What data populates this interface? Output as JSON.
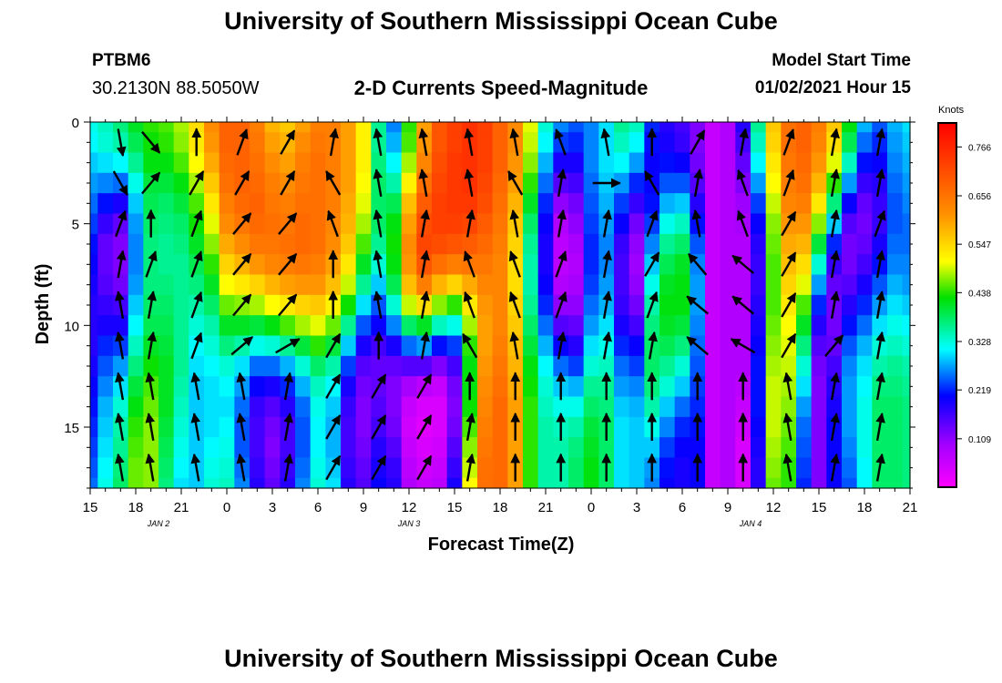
{
  "header": {
    "title": "University of Southern Mississippi Ocean Cube",
    "footer_title": "University of Southern Mississippi Ocean Cube",
    "station_id": "PTBM6",
    "station_coords": "30.2130N 88.5050W",
    "model_start_label": "Model Start Time",
    "model_start_value": "01/02/2021 Hour 15"
  },
  "chart_data": {
    "type": "heatmap",
    "title": "2-D Currents Speed-Magnitude",
    "xlabel": "Forecast Time(Z)",
    "ylabel": "Depth (ft)",
    "colorbar_label": "Knots",
    "xlim": [
      0,
      54
    ],
    "ylim": [
      0,
      18
    ],
    "y_inverted": true,
    "x_tick_labels": [
      "15",
      "18",
      "21",
      "0",
      "3",
      "6",
      "9",
      "12",
      "15",
      "18",
      "21",
      "0",
      "3",
      "6",
      "9",
      "12",
      "15",
      "18",
      "21"
    ],
    "y_ticks": [
      0,
      5,
      10,
      15
    ],
    "date_labels": [
      {
        "text": "JAN 2",
        "hours_since_start": 4.5
      },
      {
        "text": "JAN 3",
        "hours_since_start": 21
      },
      {
        "text": "JAN 4",
        "hours_since_start": 43.5
      }
    ],
    "colorbar_ticks": [
      "0.766",
      "0.656",
      "0.547",
      "0.438",
      "0.328",
      "0.219",
      "0.109"
    ],
    "colorbar_range": [
      0,
      0.82
    ],
    "depth_levels_ft": [
      0,
      1,
      2,
      3,
      4,
      5,
      6,
      7,
      8,
      9,
      10,
      11,
      12,
      13,
      14,
      15,
      16,
      17,
      18
    ],
    "speed_knots_by_hour": [
      [
        0.32,
        0.31,
        0.29,
        0.27,
        0.25,
        0.23,
        0.21,
        0.2,
        0.19,
        0.18,
        0.18,
        0.18,
        0.19,
        0.2,
        0.21,
        0.22,
        0.23,
        0.24,
        0.25
      ],
      [
        0.34,
        0.33,
        0.3,
        0.26,
        0.21,
        0.17,
        0.14,
        0.14,
        0.15,
        0.17,
        0.19,
        0.22,
        0.24,
        0.26,
        0.28,
        0.29,
        0.3,
        0.31,
        0.32
      ],
      [
        0.37,
        0.35,
        0.31,
        0.25,
        0.19,
        0.14,
        0.12,
        0.12,
        0.13,
        0.16,
        0.19,
        0.23,
        0.27,
        0.3,
        0.33,
        0.35,
        0.36,
        0.37,
        0.38
      ],
      [
        0.41,
        0.39,
        0.36,
        0.32,
        0.29,
        0.27,
        0.26,
        0.26,
        0.27,
        0.29,
        0.31,
        0.34,
        0.37,
        0.4,
        0.42,
        0.44,
        0.45,
        0.46,
        0.46
      ],
      [
        0.44,
        0.43,
        0.42,
        0.4,
        0.39,
        0.38,
        0.37,
        0.37,
        0.37,
        0.38,
        0.39,
        0.41,
        0.43,
        0.45,
        0.46,
        0.47,
        0.47,
        0.47,
        0.47
      ],
      [
        0.45,
        0.44,
        0.42,
        0.4,
        0.38,
        0.37,
        0.36,
        0.36,
        0.37,
        0.38,
        0.39,
        0.4,
        0.41,
        0.41,
        0.41,
        0.4,
        0.39,
        0.38,
        0.37
      ],
      [
        0.48,
        0.47,
        0.45,
        0.42,
        0.4,
        0.38,
        0.37,
        0.36,
        0.36,
        0.36,
        0.36,
        0.36,
        0.36,
        0.35,
        0.34,
        0.33,
        0.32,
        0.31,
        0.3
      ],
      [
        0.54,
        0.53,
        0.51,
        0.48,
        0.45,
        0.43,
        0.41,
        0.39,
        0.37,
        0.35,
        0.33,
        0.31,
        0.3,
        0.29,
        0.29,
        0.29,
        0.29,
        0.29,
        0.29
      ],
      [
        0.62,
        0.61,
        0.59,
        0.56,
        0.53,
        0.5,
        0.47,
        0.44,
        0.41,
        0.38,
        0.35,
        0.33,
        0.31,
        0.3,
        0.3,
        0.3,
        0.31,
        0.32,
        0.33
      ],
      [
        0.68,
        0.68,
        0.67,
        0.66,
        0.64,
        0.62,
        0.59,
        0.55,
        0.51,
        0.46,
        0.41,
        0.37,
        0.33,
        0.31,
        0.3,
        0.31,
        0.32,
        0.33,
        0.34
      ],
      [
        0.68,
        0.68,
        0.68,
        0.68,
        0.67,
        0.65,
        0.62,
        0.58,
        0.53,
        0.47,
        0.41,
        0.35,
        0.3,
        0.27,
        0.25,
        0.24,
        0.24,
        0.25,
        0.26
      ],
      [
        0.64,
        0.65,
        0.66,
        0.67,
        0.68,
        0.67,
        0.65,
        0.61,
        0.55,
        0.48,
        0.4,
        0.32,
        0.25,
        0.2,
        0.17,
        0.16,
        0.16,
        0.17,
        0.18
      ],
      [
        0.58,
        0.6,
        0.62,
        0.64,
        0.65,
        0.66,
        0.65,
        0.63,
        0.58,
        0.51,
        0.42,
        0.33,
        0.25,
        0.19,
        0.15,
        0.13,
        0.12,
        0.13,
        0.14
      ],
      [
        0.56,
        0.58,
        0.6,
        0.62,
        0.64,
        0.65,
        0.66,
        0.64,
        0.6,
        0.53,
        0.45,
        0.36,
        0.28,
        0.22,
        0.18,
        0.16,
        0.16,
        0.17,
        0.18
      ],
      [
        0.6,
        0.62,
        0.64,
        0.65,
        0.66,
        0.67,
        0.67,
        0.65,
        0.61,
        0.55,
        0.48,
        0.4,
        0.33,
        0.28,
        0.25,
        0.24,
        0.24,
        0.25,
        0.26
      ],
      [
        0.64,
        0.65,
        0.66,
        0.66,
        0.66,
        0.66,
        0.66,
        0.64,
        0.61,
        0.56,
        0.5,
        0.44,
        0.38,
        0.34,
        0.32,
        0.31,
        0.31,
        0.32,
        0.33
      ],
      [
        0.64,
        0.64,
        0.64,
        0.64,
        0.64,
        0.63,
        0.62,
        0.6,
        0.57,
        0.52,
        0.46,
        0.4,
        0.35,
        0.31,
        0.29,
        0.28,
        0.28,
        0.29,
        0.3
      ],
      [
        0.6,
        0.6,
        0.6,
        0.6,
        0.59,
        0.58,
        0.56,
        0.53,
        0.49,
        0.43,
        0.36,
        0.29,
        0.23,
        0.19,
        0.17,
        0.16,
        0.16,
        0.17,
        0.18
      ],
      [
        0.52,
        0.52,
        0.52,
        0.51,
        0.5,
        0.48,
        0.45,
        0.41,
        0.36,
        0.3,
        0.24,
        0.19,
        0.15,
        0.13,
        0.12,
        0.12,
        0.13,
        0.14,
        0.15
      ],
      [
        0.36,
        0.36,
        0.37,
        0.38,
        0.38,
        0.38,
        0.36,
        0.33,
        0.29,
        0.24,
        0.2,
        0.16,
        0.14,
        0.14,
        0.15,
        0.16,
        0.18,
        0.19,
        0.2
      ],
      [
        0.26,
        0.28,
        0.31,
        0.35,
        0.39,
        0.42,
        0.43,
        0.42,
        0.39,
        0.33,
        0.26,
        0.19,
        0.14,
        0.12,
        0.12,
        0.13,
        0.15,
        0.17,
        0.18
      ],
      [
        0.44,
        0.45,
        0.48,
        0.52,
        0.57,
        0.6,
        0.62,
        0.61,
        0.57,
        0.49,
        0.38,
        0.25,
        0.15,
        0.09,
        0.06,
        0.05,
        0.06,
        0.07,
        0.08
      ],
      [
        0.6,
        0.61,
        0.63,
        0.66,
        0.69,
        0.71,
        0.72,
        0.7,
        0.64,
        0.54,
        0.41,
        0.27,
        0.15,
        0.07,
        0.04,
        0.03,
        0.04,
        0.05,
        0.06
      ],
      [
        0.7,
        0.7,
        0.71,
        0.72,
        0.73,
        0.73,
        0.71,
        0.66,
        0.58,
        0.47,
        0.34,
        0.21,
        0.12,
        0.06,
        0.04,
        0.04,
        0.05,
        0.06,
        0.07
      ],
      [
        0.73,
        0.73,
        0.74,
        0.74,
        0.74,
        0.73,
        0.7,
        0.64,
        0.55,
        0.44,
        0.32,
        0.23,
        0.16,
        0.13,
        0.12,
        0.13,
        0.15,
        0.17,
        0.19
      ],
      [
        0.75,
        0.75,
        0.75,
        0.75,
        0.74,
        0.72,
        0.69,
        0.65,
        0.59,
        0.53,
        0.48,
        0.44,
        0.42,
        0.42,
        0.43,
        0.45,
        0.47,
        0.49,
        0.51
      ],
      [
        0.73,
        0.73,
        0.73,
        0.72,
        0.71,
        0.69,
        0.67,
        0.65,
        0.63,
        0.61,
        0.6,
        0.6,
        0.61,
        0.62,
        0.63,
        0.64,
        0.65,
        0.66,
        0.66
      ],
      [
        0.68,
        0.68,
        0.68,
        0.67,
        0.66,
        0.65,
        0.64,
        0.63,
        0.63,
        0.63,
        0.63,
        0.64,
        0.65,
        0.66,
        0.67,
        0.67,
        0.67,
        0.67,
        0.67
      ],
      [
        0.62,
        0.62,
        0.61,
        0.6,
        0.58,
        0.56,
        0.55,
        0.54,
        0.54,
        0.55,
        0.56,
        0.57,
        0.58,
        0.59,
        0.6,
        0.6,
        0.6,
        0.6,
        0.6
      ],
      [
        0.5,
        0.49,
        0.47,
        0.44,
        0.41,
        0.38,
        0.36,
        0.35,
        0.35,
        0.36,
        0.38,
        0.4,
        0.42,
        0.43,
        0.44,
        0.44,
        0.44,
        0.44,
        0.44
      ],
      [
        0.33,
        0.31,
        0.28,
        0.25,
        0.22,
        0.2,
        0.19,
        0.19,
        0.2,
        0.22,
        0.25,
        0.28,
        0.31,
        0.33,
        0.34,
        0.35,
        0.35,
        0.35,
        0.35
      ],
      [
        0.26,
        0.23,
        0.19,
        0.15,
        0.11,
        0.08,
        0.07,
        0.07,
        0.08,
        0.11,
        0.15,
        0.2,
        0.25,
        0.29,
        0.32,
        0.34,
        0.35,
        0.35,
        0.35
      ],
      [
        0.24,
        0.22,
        0.19,
        0.16,
        0.13,
        0.11,
        0.09,
        0.08,
        0.09,
        0.11,
        0.14,
        0.18,
        0.23,
        0.28,
        0.32,
        0.35,
        0.37,
        0.38,
        0.38
      ],
      [
        0.26,
        0.26,
        0.26,
        0.25,
        0.24,
        0.23,
        0.22,
        0.22,
        0.23,
        0.25,
        0.27,
        0.3,
        0.33,
        0.36,
        0.38,
        0.4,
        0.41,
        0.42,
        0.42
      ],
      [
        0.3,
        0.3,
        0.3,
        0.29,
        0.28,
        0.27,
        0.26,
        0.26,
        0.27,
        0.28,
        0.3,
        0.32,
        0.34,
        0.36,
        0.37,
        0.38,
        0.38,
        0.38,
        0.38
      ],
      [
        0.36,
        0.34,
        0.31,
        0.27,
        0.23,
        0.2,
        0.17,
        0.16,
        0.16,
        0.17,
        0.19,
        0.22,
        0.25,
        0.27,
        0.29,
        0.3,
        0.3,
        0.3,
        0.3
      ],
      [
        0.34,
        0.31,
        0.27,
        0.22,
        0.17,
        0.13,
        0.11,
        0.1,
        0.11,
        0.13,
        0.16,
        0.2,
        0.23,
        0.26,
        0.28,
        0.29,
        0.29,
        0.29,
        0.29
      ],
      [
        0.22,
        0.21,
        0.2,
        0.2,
        0.21,
        0.23,
        0.26,
        0.29,
        0.32,
        0.35,
        0.37,
        0.38,
        0.38,
        0.37,
        0.35,
        0.32,
        0.29,
        0.27,
        0.26
      ],
      [
        0.18,
        0.19,
        0.21,
        0.24,
        0.28,
        0.32,
        0.36,
        0.39,
        0.41,
        0.42,
        0.41,
        0.39,
        0.36,
        0.33,
        0.29,
        0.26,
        0.23,
        0.21,
        0.2
      ],
      [
        0.16,
        0.17,
        0.2,
        0.24,
        0.29,
        0.34,
        0.38,
        0.41,
        0.42,
        0.42,
        0.4,
        0.37,
        0.33,
        0.29,
        0.25,
        0.22,
        0.2,
        0.19,
        0.19
      ],
      [
        0.12,
        0.12,
        0.13,
        0.15,
        0.18,
        0.21,
        0.24,
        0.26,
        0.27,
        0.27,
        0.26,
        0.25,
        0.24,
        0.23,
        0.22,
        0.21,
        0.2,
        0.2,
        0.2
      ],
      [
        0.06,
        0.06,
        0.06,
        0.06,
        0.06,
        0.06,
        0.06,
        0.06,
        0.06,
        0.06,
        0.06,
        0.06,
        0.06,
        0.06,
        0.06,
        0.06,
        0.06,
        0.06,
        0.06
      ],
      [
        0.08,
        0.08,
        0.08,
        0.08,
        0.08,
        0.08,
        0.08,
        0.08,
        0.08,
        0.08,
        0.08,
        0.08,
        0.08,
        0.08,
        0.08,
        0.08,
        0.08,
        0.08,
        0.08
      ],
      [
        0.18,
        0.16,
        0.14,
        0.12,
        0.1,
        0.09,
        0.08,
        0.08,
        0.08,
        0.08,
        0.08,
        0.08,
        0.08,
        0.07,
        0.06,
        0.05,
        0.04,
        0.04,
        0.04
      ],
      [
        0.36,
        0.34,
        0.31,
        0.27,
        0.23,
        0.2,
        0.18,
        0.17,
        0.17,
        0.18,
        0.19,
        0.2,
        0.21,
        0.21,
        0.21,
        0.2,
        0.19,
        0.18,
        0.18
      ],
      [
        0.56,
        0.55,
        0.53,
        0.51,
        0.49,
        0.47,
        0.46,
        0.45,
        0.45,
        0.45,
        0.46,
        0.47,
        0.48,
        0.49,
        0.49,
        0.49,
        0.48,
        0.47,
        0.46
      ],
      [
        0.66,
        0.66,
        0.65,
        0.64,
        0.63,
        0.61,
        0.59,
        0.57,
        0.55,
        0.53,
        0.51,
        0.5,
        0.49,
        0.48,
        0.47,
        0.46,
        0.45,
        0.44,
        0.44
      ],
      [
        0.68,
        0.68,
        0.67,
        0.66,
        0.64,
        0.61,
        0.58,
        0.54,
        0.5,
        0.45,
        0.41,
        0.37,
        0.33,
        0.3,
        0.27,
        0.25,
        0.24,
        0.23,
        0.22
      ],
      [
        0.64,
        0.63,
        0.61,
        0.58,
        0.53,
        0.47,
        0.4,
        0.33,
        0.27,
        0.22,
        0.18,
        0.15,
        0.13,
        0.12,
        0.12,
        0.12,
        0.12,
        0.12,
        0.12
      ],
      [
        0.56,
        0.54,
        0.5,
        0.44,
        0.37,
        0.29,
        0.22,
        0.17,
        0.14,
        0.13,
        0.13,
        0.14,
        0.16,
        0.18,
        0.19,
        0.2,
        0.2,
        0.2,
        0.2
      ],
      [
        0.42,
        0.39,
        0.34,
        0.27,
        0.2,
        0.15,
        0.13,
        0.13,
        0.15,
        0.18,
        0.21,
        0.24,
        0.26,
        0.27,
        0.27,
        0.27,
        0.26,
        0.25,
        0.24
      ],
      [
        0.28,
        0.25,
        0.21,
        0.17,
        0.14,
        0.13,
        0.14,
        0.16,
        0.19,
        0.22,
        0.25,
        0.28,
        0.3,
        0.31,
        0.32,
        0.32,
        0.32,
        0.31,
        0.31
      ],
      [
        0.24,
        0.22,
        0.2,
        0.18,
        0.17,
        0.17,
        0.19,
        0.21,
        0.24,
        0.27,
        0.3,
        0.33,
        0.35,
        0.37,
        0.38,
        0.38,
        0.38,
        0.38,
        0.38
      ],
      [
        0.28,
        0.27,
        0.26,
        0.25,
        0.24,
        0.24,
        0.25,
        0.26,
        0.28,
        0.3,
        0.32,
        0.34,
        0.36,
        0.37,
        0.38,
        0.38,
        0.38,
        0.38,
        0.38
      ],
      [
        0.3,
        0.29,
        0.28,
        0.27,
        0.26,
        0.25,
        0.25,
        0.26,
        0.27,
        0.29,
        0.31,
        0.33,
        0.35,
        0.36,
        0.37,
        0.37,
        0.37,
        0.37,
        0.37
      ]
    ],
    "vector_columns_hours": [
      2,
      4,
      7,
      10,
      13,
      16,
      19,
      22,
      25,
      28,
      31,
      34,
      37,
      40,
      43,
      46,
      49,
      52
    ],
    "vector_rows_ft": [
      1,
      3,
      5,
      7,
      9,
      11,
      13,
      15,
      17
    ],
    "vector_angles_deg": [
      [
        280,
        310,
        90,
        70,
        60,
        80,
        100,
        100,
        100,
        100,
        110,
        100,
        90,
        60,
        80,
        70,
        80,
        80
      ],
      [
        300,
        50,
        60,
        60,
        60,
        120,
        100,
        100,
        100,
        120,
        80,
        0,
        120,
        80,
        110,
        70,
        80,
        80
      ],
      [
        70,
        90,
        70,
        50,
        50,
        110,
        100,
        80,
        80,
        100,
        80,
        80,
        70,
        100,
        110,
        60,
        80,
        70
      ],
      [
        80,
        70,
        70,
        50,
        50,
        90,
        100,
        80,
        110,
        110,
        70,
        80,
        60,
        130,
        140,
        60,
        80,
        80
      ],
      [
        100,
        80,
        70,
        50,
        50,
        90,
        100,
        80,
        110,
        110,
        70,
        80,
        70,
        140,
        140,
        60,
        80,
        80
      ],
      [
        100,
        80,
        70,
        40,
        30,
        60,
        90,
        80,
        120,
        100,
        80,
        80,
        80,
        140,
        150,
        60,
        50,
        80
      ],
      [
        100,
        100,
        100,
        100,
        80,
        60,
        60,
        60,
        90,
        90,
        90,
        90,
        90,
        90,
        90,
        100,
        80,
        80
      ],
      [
        100,
        100,
        100,
        100,
        80,
        60,
        60,
        60,
        80,
        90,
        90,
        90,
        90,
        90,
        90,
        100,
        80,
        80
      ],
      [
        100,
        100,
        100,
        100,
        80,
        60,
        60,
        60,
        80,
        90,
        90,
        90,
        90,
        90,
        90,
        100,
        80,
        80
      ]
    ]
  }
}
